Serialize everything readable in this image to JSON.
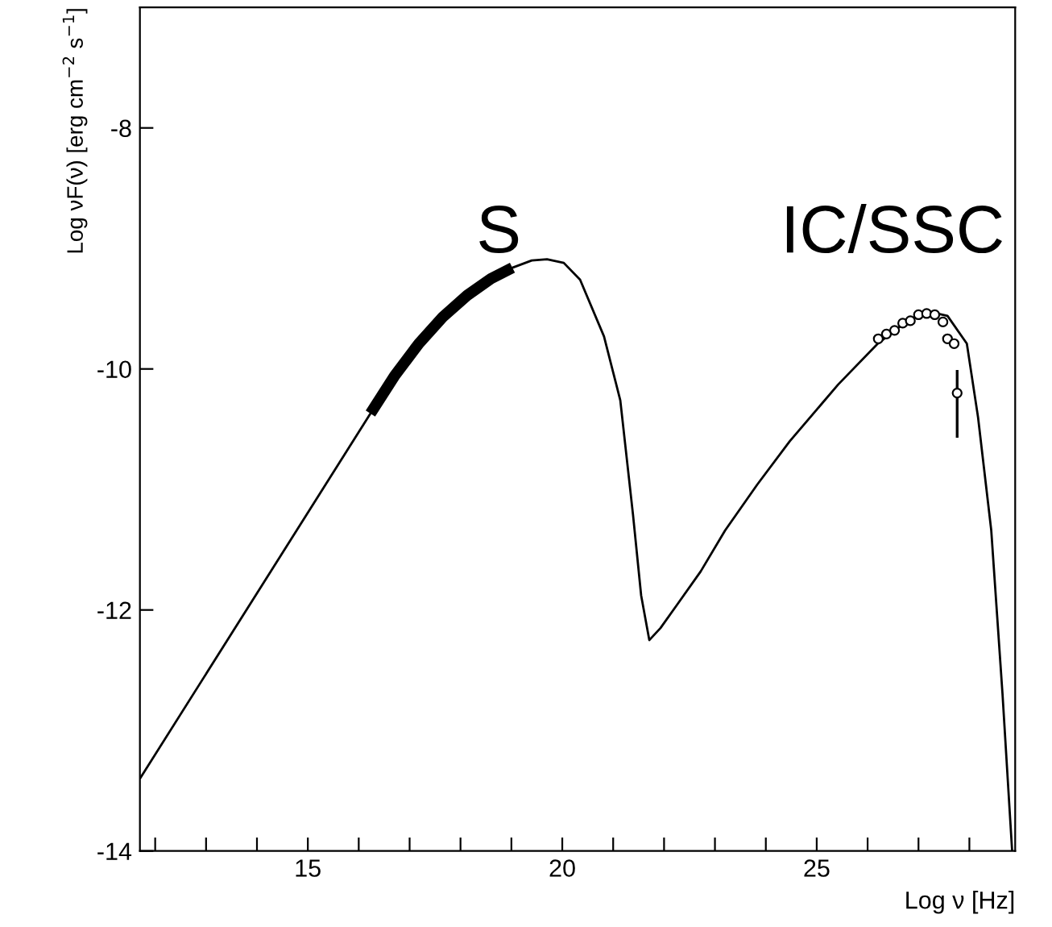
{
  "chart_data": {
    "type": "line",
    "xlabel": "Log ν [Hz]",
    "ylabel": "Log νF(ν) [erg cm$^{−2}$ s$^{−1}$]",
    "xlim": [
      11.7,
      28.9
    ],
    "ylim": [
      -14,
      -7
    ],
    "xticks": [
      {
        "value": 12,
        "label": null
      },
      {
        "value": 13,
        "label": null
      },
      {
        "value": 14,
        "label": null
      },
      15,
      {
        "value": 16,
        "label": null
      },
      {
        "value": 17,
        "label": null
      },
      {
        "value": 18,
        "label": null
      },
      {
        "value": 19,
        "label": null
      },
      20,
      {
        "value": 21,
        "label": null
      },
      {
        "value": 22,
        "label": null
      },
      {
        "value": 23,
        "label": null
      },
      {
        "value": 24,
        "label": null
      },
      25,
      {
        "value": 26,
        "label": null
      },
      {
        "value": 27,
        "label": null
      },
      {
        "value": 28,
        "label": null
      }
    ],
    "yticks": [
      -14,
      -12,
      -10,
      -8
    ],
    "grid": false,
    "legend": false,
    "series": [
      {
        "color": "#000000",
        "x": [
          11.7,
          16.23,
          17.18,
          18.13,
          19.02,
          19.4,
          19.7,
          20.03,
          20.35,
          20.82,
          21.14,
          21.39,
          21.55,
          21.71,
          21.93,
          22.25,
          22.72,
          23.2,
          23.83,
          24.47,
          25.42,
          26.2,
          26.69,
          27.16,
          27.57,
          27.95,
          28.17,
          28.43,
          28.65,
          28.84
        ],
        "values": [
          -13.4,
          -10.37,
          -9.79,
          -9.39,
          -9.16,
          -9.1,
          -9.09,
          -9.12,
          -9.26,
          -9.73,
          -10.26,
          -11.21,
          -11.88,
          -12.25,
          -12.15,
          -11.96,
          -11.68,
          -11.34,
          -10.96,
          -10.6,
          -10.13,
          -9.79,
          -9.63,
          -9.52,
          -9.56,
          -9.79,
          -10.4,
          -11.34,
          -12.69,
          -14
        ]
      },
      {
        "color": "#000000",
        "x": [
          16.23,
          16.7,
          17.18,
          17.65,
          18.13,
          18.6,
          19.02
        ],
        "values": [
          -10.37,
          -10.06,
          -9.79,
          -9.57,
          -9.39,
          -9.25,
          -9.16
        ]
      },
      {
        "type": "scatter",
        "color": "#000000",
        "marker": "circle",
        "x": [
          26.21,
          26.37,
          26.53,
          26.69,
          26.84,
          27.0,
          27.16,
          27.32,
          27.48,
          27.57,
          27.7,
          27.76
        ],
        "values": [
          -9.75,
          -9.71,
          -9.68,
          -9.62,
          -9.6,
          -9.55,
          -9.54,
          -9.55,
          -9.61,
          -9.75,
          -9.79,
          -10.2
        ],
        "errors": [
          null,
          null,
          null,
          null,
          null,
          null,
          null,
          null,
          null,
          null,
          null,
          [
            -10.56,
            -10.02
          ]
        ]
      }
    ],
    "annotations": [
      "S",
      "IC/SSC"
    ]
  }
}
